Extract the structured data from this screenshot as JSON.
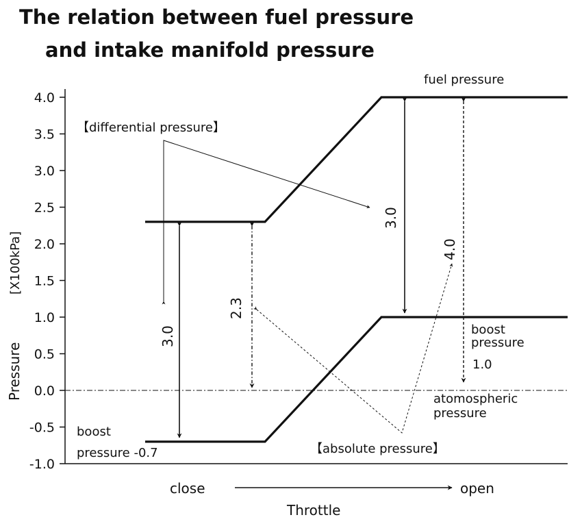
{
  "chart_data": {
    "type": "line",
    "title_line1": "The relation between fuel pressure",
    "title_line2": "and intake manifold pressure",
    "ylabel": "Pressure",
    "yunit": "[X100kPa]",
    "xlabel": "Throttle",
    "x_start_label": "close",
    "x_end_label": "open",
    "ylim": [
      -1.0,
      4.0
    ],
    "yticks": [
      "4.0",
      "3.5",
      "3.0",
      "2.5",
      "2.0",
      "1.5",
      "1.0",
      "0.5",
      "0.0",
      "-0.5",
      "-1.0"
    ],
    "ytick_values": [
      4.0,
      3.5,
      3.0,
      2.5,
      2.0,
      1.5,
      1.0,
      0.5,
      0.0,
      -0.5,
      -1.0
    ],
    "series": [
      {
        "label": "fuel pressure",
        "x": [
          0,
          1,
          2,
          3
        ],
        "values": [
          2.3,
          2.3,
          4.0,
          4.0
        ]
      },
      {
        "label": "boost pressure",
        "x": [
          0,
          1,
          2,
          3
        ],
        "values": [
          -0.7,
          -0.7,
          1.0,
          1.0
        ]
      }
    ],
    "reference_line": {
      "value": 0.0,
      "label_line1": "atomospheric",
      "label_line2": "pressure"
    },
    "annotations": {
      "differential_pressure": "【differential pressure】",
      "absolute_pressure": "【absolute pressure】",
      "left_diff_value": "3.0",
      "left_abs_value": "2.3",
      "right_diff_value": "3.0",
      "right_abs_value": "4.0",
      "boost_left_line1": "boost",
      "boost_left_line2": "pressure -0.7",
      "boost_right_line1": "boost",
      "boost_right_line2": "pressure",
      "boost_right_value": "1.0",
      "fuel_label": "fuel pressure"
    }
  }
}
